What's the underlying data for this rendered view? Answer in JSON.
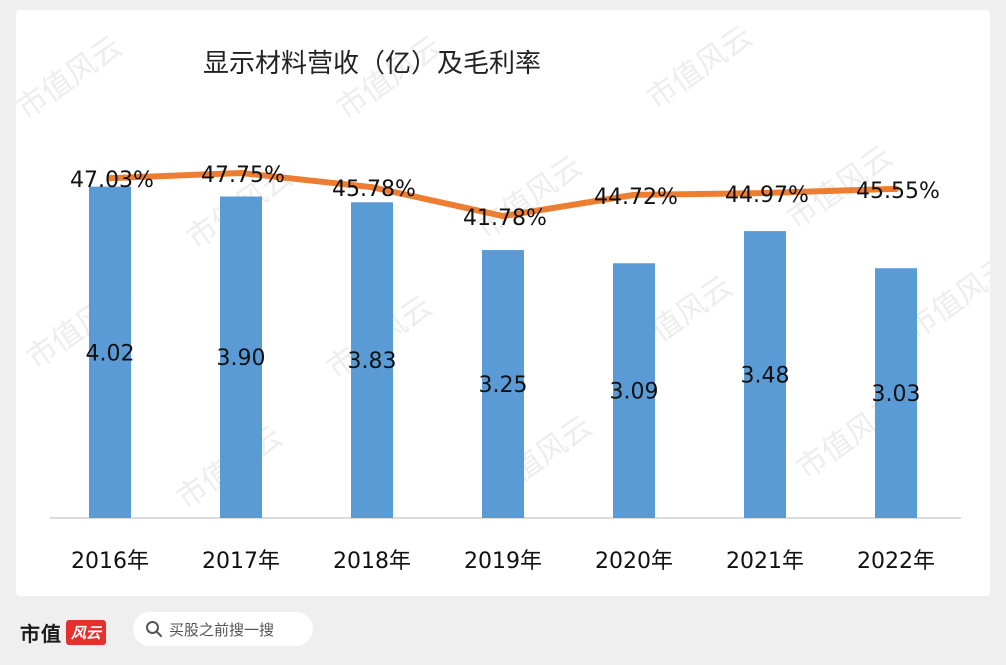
{
  "chart_data": {
    "type": "bar+line",
    "title": "显示材料营收（亿）及毛利率",
    "categories": [
      "2016年",
      "2017年",
      "2018年",
      "2019年",
      "2020年",
      "2021年",
      "2022年"
    ],
    "series": [
      {
        "name": "营收（亿）",
        "type": "bar",
        "values": [
          4.02,
          3.9,
          3.83,
          3.25,
          3.09,
          3.48,
          3.03
        ],
        "labels": [
          "4.02",
          "3.90",
          "3.83",
          "3.25",
          "3.09",
          "3.48",
          "3.03"
        ]
      },
      {
        "name": "毛利率",
        "type": "line",
        "values": [
          47.03,
          47.75,
          45.78,
          41.78,
          44.72,
          44.97,
          45.55
        ],
        "labels": [
          "47.03%",
          "47.75%",
          "45.78%",
          "41.78%",
          "44.72%",
          "44.97%",
          "45.55%"
        ]
      }
    ],
    "bar_ylim": [
      0,
      4.1
    ],
    "line_ylim": [
      0,
      62
    ],
    "xlabel": "",
    "ylabel": "",
    "grid": false,
    "colors": {
      "bar": "#5b9bd5",
      "line": "#ed7d31",
      "axis": "#d0d0d0",
      "text": "#111111"
    }
  },
  "watermark": "市值风云",
  "footer": {
    "brand": "市值",
    "brand_logo": "风云",
    "search_placeholder": "买股之前搜一搜",
    "search_icon": "search-icon"
  }
}
